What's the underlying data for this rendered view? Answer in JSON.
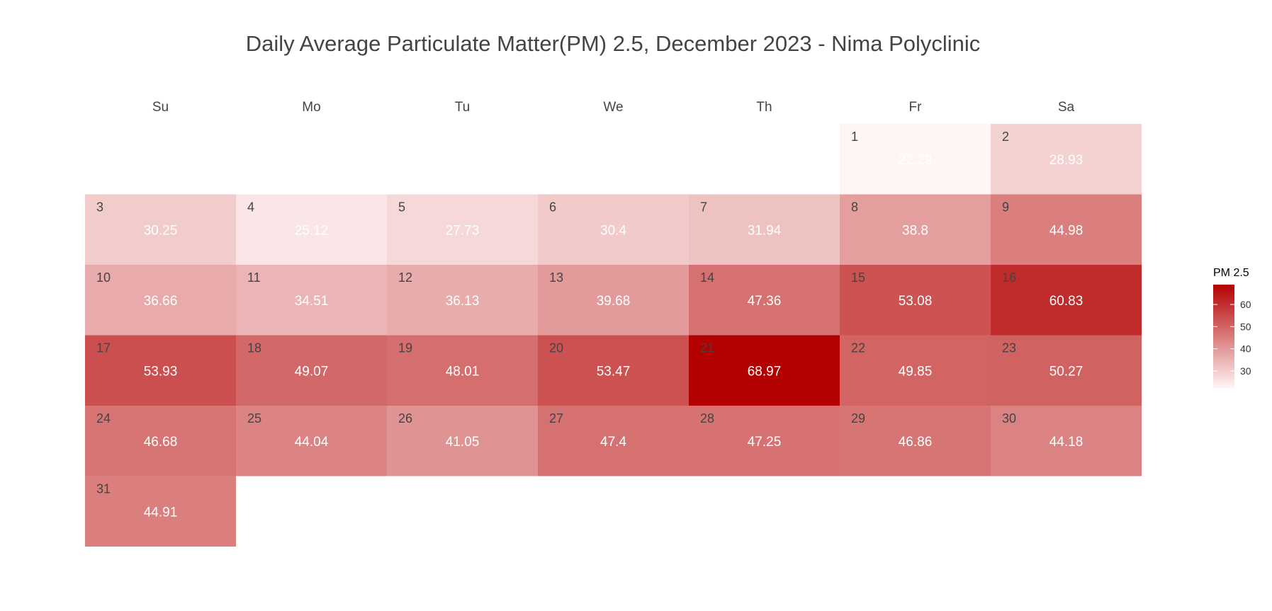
{
  "chart_data": {
    "type": "heatmap",
    "title": "Daily Average Particulate Matter(PM) 2.5, December 2023 - Nima Polyclinic",
    "weekdays": [
      "Su",
      "Mo",
      "Tu",
      "We",
      "Th",
      "Fr",
      "Sa"
    ],
    "first_weekday_index": 5,
    "days": [
      1,
      2,
      3,
      4,
      5,
      6,
      7,
      8,
      9,
      10,
      11,
      12,
      13,
      14,
      15,
      16,
      17,
      18,
      19,
      20,
      21,
      22,
      23,
      24,
      25,
      26,
      27,
      28,
      29,
      30,
      31
    ],
    "values": [
      22.29,
      28.93,
      30.25,
      25.12,
      27.73,
      30.4,
      31.94,
      38.8,
      44.98,
      36.66,
      34.51,
      36.13,
      39.68,
      47.36,
      53.08,
      60.83,
      53.93,
      49.07,
      48.01,
      53.47,
      68.97,
      49.85,
      50.27,
      46.68,
      44.04,
      41.05,
      47.4,
      47.25,
      46.86,
      44.18,
      44.91
    ],
    "value_labels": [
      "22.29",
      "28.93",
      "30.25",
      "25.12",
      "27.73",
      "30.4",
      "31.94",
      "38.8",
      "44.98",
      "36.66",
      "34.51",
      "36.13",
      "39.68",
      "47.36",
      "53.08",
      "60.83",
      "53.93",
      "49.07",
      "48.01",
      "53.47",
      "68.97",
      "49.85",
      "50.27",
      "46.68",
      "44.04",
      "41.05",
      "47.4",
      "47.25",
      "46.86",
      "44.18",
      "44.91"
    ],
    "color_scale": {
      "low_color": "#fff5f5",
      "high_color": "#b30000",
      "domain": [
        22.29,
        68.97
      ]
    },
    "legend": {
      "title": "PM 2.5",
      "ticks": [
        30,
        40,
        50,
        60
      ],
      "tick_labels": [
        "30",
        "40",
        "50",
        "60"
      ],
      "position": "right"
    }
  }
}
